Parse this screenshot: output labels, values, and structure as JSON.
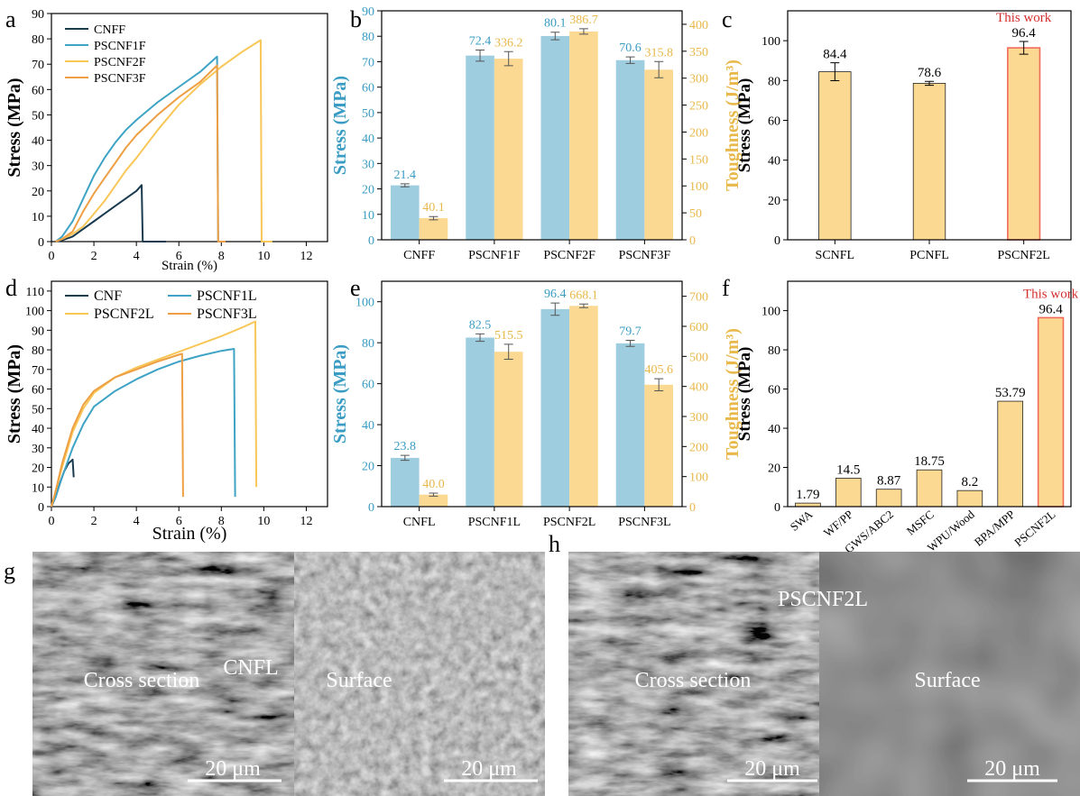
{
  "colors": {
    "cnf": "#1a3a4f",
    "ps1": "#3ea3c4",
    "ps2": "#f8c757",
    "ps3": "#ee9f43",
    "stress_bar": "#9fcde0",
    "tough_bar": "#fcd992",
    "stress_axis": "#3a9cc3",
    "tough_axis": "#e8b84a",
    "highlight": "#f06a5c",
    "this_work": "#d32f2f"
  },
  "chart_data": [
    {
      "id": "a",
      "panel_label": "a",
      "type": "line",
      "xlabel": "Strain (%)",
      "ylabel": "Stress (MPa)",
      "xlim": [
        0,
        13
      ],
      "ylim": [
        0,
        90
      ],
      "xticks": [
        0,
        2,
        4,
        6,
        8,
        10,
        12
      ],
      "yticks": [
        0,
        10,
        20,
        30,
        40,
        50,
        60,
        70,
        80,
        90
      ],
      "xtick_labels": [
        "0",
        "2",
        "4",
        "6",
        "8",
        "10",
        "12"
      ],
      "ytick_labels": [
        "0",
        "10",
        "20",
        "30",
        "40",
        "50",
        "60",
        "70",
        "80",
        "90"
      ],
      "legend": [
        "CNFF",
        "PSCNF1F",
        "PSCNF2F",
        "PSCNF3F"
      ],
      "legend_layout": "column",
      "series": [
        {
          "name": "CNFF",
          "color": "cnf",
          "points": [
            [
              0.2,
              0
            ],
            [
              0.5,
              0.5
            ],
            [
              1,
              2
            ],
            [
              1.5,
              5
            ],
            [
              2,
              8
            ],
            [
              2.5,
              11
            ],
            [
              3,
              14
            ],
            [
              3.5,
              17
            ],
            [
              4,
              20
            ],
            [
              4.25,
              22.3
            ],
            [
              4.3,
              0
            ],
            [
              5.4,
              0
            ]
          ]
        },
        {
          "name": "PSCNF1F",
          "color": "ps1",
          "points": [
            [
              0.2,
              0
            ],
            [
              0.5,
              2
            ],
            [
              1,
              8
            ],
            [
              1.5,
              17
            ],
            [
              2,
              26
            ],
            [
              2.5,
              33
            ],
            [
              3,
              39
            ],
            [
              3.5,
              44
            ],
            [
              4,
              48
            ],
            [
              5,
              55
            ],
            [
              6,
              61
            ],
            [
              7,
              67
            ],
            [
              7.8,
              73
            ],
            [
              7.85,
              0
            ],
            [
              8.2,
              0
            ]
          ]
        },
        {
          "name": "PSCNF2F",
          "color": "ps2",
          "points": [
            [
              0.2,
              0
            ],
            [
              0.5,
              1
            ],
            [
              1,
              3
            ],
            [
              1.5,
              6
            ],
            [
              2,
              11
            ],
            [
              2.5,
              16
            ],
            [
              3,
              22
            ],
            [
              3.5,
              28
            ],
            [
              4,
              33
            ],
            [
              5,
              44
            ],
            [
              6,
              54
            ],
            [
              7,
              62
            ],
            [
              8,
              69
            ],
            [
              9,
              75
            ],
            [
              9.85,
              79.5
            ],
            [
              9.9,
              0
            ],
            [
              10.4,
              0
            ]
          ]
        },
        {
          "name": "PSCNF3F",
          "color": "ps3",
          "points": [
            [
              0.2,
              0
            ],
            [
              0.5,
              1
            ],
            [
              1,
              4
            ],
            [
              1.5,
              12
            ],
            [
              2,
              19
            ],
            [
              2.5,
              25
            ],
            [
              3,
              31
            ],
            [
              3.5,
              37
            ],
            [
              4,
              42
            ],
            [
              5,
              50
            ],
            [
              6,
              57
            ],
            [
              7,
              63
            ],
            [
              7.8,
              69.5
            ],
            [
              7.85,
              0
            ],
            [
              8.2,
              0
            ]
          ]
        }
      ]
    },
    {
      "id": "b",
      "panel_label": "b",
      "type": "bar",
      "categories": [
        "CNFF",
        "PSCNF1F",
        "PSCNF2F",
        "PSCNF3F"
      ],
      "series": [
        {
          "name": "Stress",
          "axis": "left",
          "values": [
            21.4,
            72.4,
            80.1,
            70.6
          ],
          "labels": [
            "21.4",
            "72.4",
            "80.1",
            "70.6"
          ],
          "errors": [
            0.6,
            2.2,
            1.5,
            1.3
          ]
        },
        {
          "name": "Toughness",
          "axis": "right",
          "values": [
            40.1,
            336.2,
            386.7,
            315.8
          ],
          "labels": [
            "40.1",
            "336.2",
            "386.7",
            "315.8"
          ],
          "errors": [
            3,
            13,
            5,
            15
          ]
        }
      ],
      "ylabel": "Stress (MPa)",
      "y2label": "Toughness (J/m³)",
      "ylim": [
        0,
        90
      ],
      "y2lim": [
        0,
        425
      ],
      "yticks": [
        0,
        10,
        20,
        30,
        40,
        50,
        60,
        70,
        80,
        90
      ],
      "ytick_labels": [
        "0",
        "10",
        "20",
        "30",
        "40",
        "50",
        "60",
        "70",
        "80",
        "90"
      ],
      "y2ticks": [
        0,
        50,
        100,
        150,
        200,
        250,
        300,
        350,
        400
      ],
      "y2tick_labels": [
        "0",
        "50",
        "100",
        "150",
        "200",
        "250",
        "300",
        "350",
        "400"
      ]
    },
    {
      "id": "c",
      "panel_label": "c",
      "type": "bar",
      "categories": [
        "SCNFL",
        "PCNFL",
        "PSCNF2L"
      ],
      "values": [
        84.4,
        78.6,
        96.4
      ],
      "labels": [
        "84.4",
        "78.6",
        "96.4"
      ],
      "errors": [
        4.5,
        1.0,
        3.2
      ],
      "highlight": [
        false,
        false,
        true
      ],
      "annotation": "This work",
      "ylabel": "Stress (MPa)",
      "ylim": [
        0,
        115
      ],
      "yticks": [
        0,
        20,
        40,
        60,
        80,
        100
      ],
      "ytick_labels": [
        "0",
        "20",
        "40",
        "60",
        "80",
        "100"
      ]
    },
    {
      "id": "d",
      "panel_label": "d",
      "type": "line",
      "xlabel": "Strain (%)",
      "ylabel": "Stress (MPa)",
      "xlim": [
        0,
        13
      ],
      "ylim": [
        0,
        115
      ],
      "xticks": [
        0,
        2,
        4,
        6,
        8,
        10,
        12
      ],
      "yticks": [
        0,
        10,
        20,
        30,
        40,
        50,
        60,
        70,
        80,
        90,
        100,
        110
      ],
      "xtick_labels": [
        "0",
        "2",
        "4",
        "6",
        "8",
        "10",
        "12"
      ],
      "ytick_labels": [
        "0",
        "10",
        "20",
        "30",
        "40",
        "50",
        "60",
        "70",
        "80",
        "90",
        "100",
        "110"
      ],
      "legend": [
        "CNF",
        "PSCNF1L",
        "PSCNF2L",
        "PSCNF3L"
      ],
      "legend_layout": "grid",
      "series": [
        {
          "name": "CNF",
          "color": "cnf",
          "points": [
            [
              0,
              0
            ],
            [
              0.2,
              5
            ],
            [
              0.4,
              12
            ],
            [
              0.6,
              18
            ],
            [
              0.8,
              22
            ],
            [
              1.0,
              24
            ],
            [
              1.05,
              15
            ]
          ]
        },
        {
          "name": "PSCNF1L",
          "color": "ps1",
          "points": [
            [
              0,
              0
            ],
            [
              0.2,
              5
            ],
            [
              0.5,
              15
            ],
            [
              1,
              30
            ],
            [
              1.5,
              42
            ],
            [
              2,
              51
            ],
            [
              3,
              59
            ],
            [
              4,
              65
            ],
            [
              5,
              70
            ],
            [
              6,
              74
            ],
            [
              7,
              77
            ],
            [
              8,
              79.5
            ],
            [
              8.6,
              80.5
            ],
            [
              8.65,
              5
            ]
          ]
        },
        {
          "name": "PSCNF2L",
          "color": "ps2",
          "points": [
            [
              0,
              0
            ],
            [
              0.2,
              8
            ],
            [
              0.5,
              20
            ],
            [
              1,
              38
            ],
            [
              1.5,
              50
            ],
            [
              2,
              58
            ],
            [
              3,
              66
            ],
            [
              4,
              71
            ],
            [
              5,
              75
            ],
            [
              6,
              79
            ],
            [
              7,
              83
            ],
            [
              8,
              87
            ],
            [
              9,
              91.5
            ],
            [
              9.6,
              94.5
            ],
            [
              9.65,
              10
            ]
          ]
        },
        {
          "name": "PSCNF3L",
          "color": "ps3",
          "points": [
            [
              0,
              0
            ],
            [
              0.2,
              8
            ],
            [
              0.5,
              22
            ],
            [
              1,
              40
            ],
            [
              1.5,
              52
            ],
            [
              2,
              59
            ],
            [
              3,
              66
            ],
            [
              4,
              70
            ],
            [
              5,
              74
            ],
            [
              6,
              77.5
            ],
            [
              6.15,
              78
            ],
            [
              6.2,
              5
            ]
          ]
        }
      ]
    },
    {
      "id": "e",
      "panel_label": "e",
      "type": "bar",
      "categories": [
        "CNFL",
        "PSCNF1L",
        "PSCNF2L",
        "PSCNF3L"
      ],
      "series": [
        {
          "name": "Stress",
          "axis": "left",
          "values": [
            23.8,
            82.5,
            96.4,
            79.7
          ],
          "labels": [
            "23.8",
            "82.5",
            "96.4",
            "79.7"
          ],
          "errors": [
            1.2,
            1.8,
            3.0,
            1.5
          ]
        },
        {
          "name": "Toughness",
          "axis": "right",
          "values": [
            40.0,
            515.5,
            668.1,
            405.6
          ],
          "labels": [
            "40.0",
            "515.5",
            "668.1",
            "405.6"
          ],
          "errors": [
            5,
            25,
            6,
            20
          ]
        }
      ],
      "ylabel": "Stress (MPa)",
      "y2label": "Toughness (J/m³)",
      "ylim": [
        0,
        110
      ],
      "y2lim": [
        0,
        750
      ],
      "yticks": [
        0,
        20,
        40,
        60,
        80,
        100
      ],
      "ytick_labels": [
        "0",
        "20",
        "40",
        "60",
        "80",
        "100"
      ],
      "y2ticks": [
        0,
        100,
        200,
        300,
        400,
        500,
        600,
        700
      ],
      "y2tick_labels": [
        "0",
        "100",
        "200",
        "300",
        "400",
        "500",
        "600",
        "700"
      ]
    },
    {
      "id": "f",
      "panel_label": "f",
      "type": "bar",
      "categories": [
        "SWA",
        "WF/PP",
        "GWS/ABC2",
        "MSFC",
        "WPU/Wood",
        "BPA/MPP",
        "PSCNF2L"
      ],
      "values": [
        1.79,
        14.5,
        8.87,
        18.75,
        8.2,
        53.79,
        96.4
      ],
      "labels": [
        "1.79",
        "14.5",
        "8.87",
        "18.75",
        "8.2",
        "53.79",
        "96.4"
      ],
      "highlight": [
        false,
        false,
        false,
        false,
        false,
        false,
        true
      ],
      "annotation": "This work",
      "ylabel": "Stress (MPa)",
      "ylim": [
        0,
        115
      ],
      "yticks": [
        0,
        20,
        40,
        60,
        80,
        100
      ],
      "ytick_labels": [
        "0",
        "20",
        "40",
        "60",
        "80",
        "100"
      ]
    }
  ],
  "sem_panels": [
    {
      "id": "g",
      "panel_label": "g",
      "sample": "CNFL",
      "left_label": "Cross section",
      "right_label": "Surface",
      "scale_left": "20 μm",
      "scale_right": "20 μm"
    },
    {
      "id": "h",
      "panel_label": "h",
      "sample": "PSCNF2L",
      "left_label": "Cross section",
      "right_label": "Surface",
      "scale_left": "20 μm",
      "scale_right": "20 μm"
    }
  ]
}
